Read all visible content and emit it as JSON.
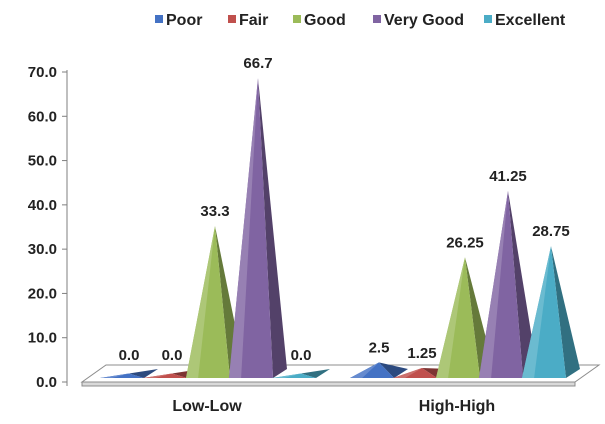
{
  "chart_data": {
    "type": "bar",
    "style": "3d-pyramid",
    "categories": [
      "Low-Low",
      "High-High"
    ],
    "series": [
      {
        "name": "Poor",
        "color": "#4472C4",
        "values": [
          0.0,
          2.5
        ],
        "labels": [
          "0.0",
          "2.5"
        ]
      },
      {
        "name": "Fair",
        "color": "#C0504D",
        "values": [
          0.0,
          1.25
        ],
        "labels": [
          "0.0",
          "1.25"
        ]
      },
      {
        "name": "Good",
        "color": "#9BBB59",
        "values": [
          33.3,
          26.25
        ],
        "labels": [
          "33.3",
          "26.25"
        ]
      },
      {
        "name": "Very Good",
        "color": "#8064A2",
        "values": [
          66.7,
          41.25
        ],
        "labels": [
          "66.7",
          "41.25"
        ]
      },
      {
        "name": "Excellent",
        "color": "#4BACC6",
        "values": [
          0.0,
          28.75
        ],
        "labels": [
          "0.0",
          "28.75"
        ]
      }
    ],
    "yticks": [
      "0.0",
      "10.0",
      "20.0",
      "30.0",
      "40.0",
      "50.0",
      "60.0",
      "70.0"
    ],
    "ylim": [
      0,
      70
    ],
    "legend_position": "top",
    "grid": false
  }
}
